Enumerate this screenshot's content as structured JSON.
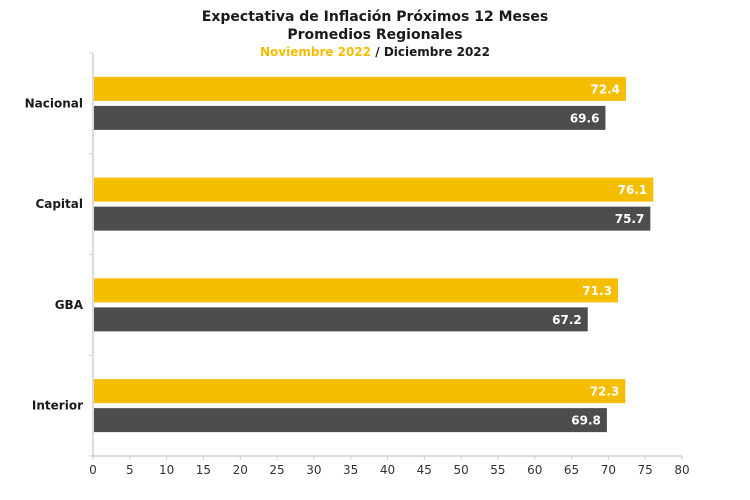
{
  "chart_data": {
    "type": "bar",
    "orientation": "horizontal",
    "title": "Expectativa de Inflación Próximos 12 Meses",
    "subtitle": "Promedios Regionales",
    "legend_line": {
      "series1_label": "Noviembre 2022",
      "separator": " / ",
      "series2_label": "Diciembre 2022"
    },
    "categories": [
      "Nacional",
      "Capital",
      "GBA",
      "Interior"
    ],
    "series": [
      {
        "name": "Noviembre 2022",
        "color": "#F5BD00",
        "values": [
          72.4,
          76.1,
          71.3,
          72.3
        ],
        "labels": [
          "72.4",
          "76.1",
          "71.3",
          "72.3"
        ]
      },
      {
        "name": "Diciembre 2022",
        "color": "#4D4D4D",
        "values": [
          69.6,
          75.7,
          67.2,
          69.8
        ],
        "labels": [
          "69.6",
          "75.7",
          "67.2",
          "69.8"
        ]
      }
    ],
    "xlim": [
      0,
      80
    ],
    "xticks": [
      0,
      5,
      10,
      15,
      20,
      25,
      30,
      35,
      40,
      45,
      50,
      55,
      60,
      65,
      70,
      75,
      80
    ],
    "xtick_labels": [
      "0",
      "5",
      "10",
      "15",
      "20",
      "25",
      "30",
      "35",
      "40",
      "45",
      "50",
      "55",
      "60",
      "65",
      "70",
      "75",
      "80"
    ],
    "xlabel": "",
    "ylabel": "",
    "grid": false,
    "legend": "top"
  }
}
